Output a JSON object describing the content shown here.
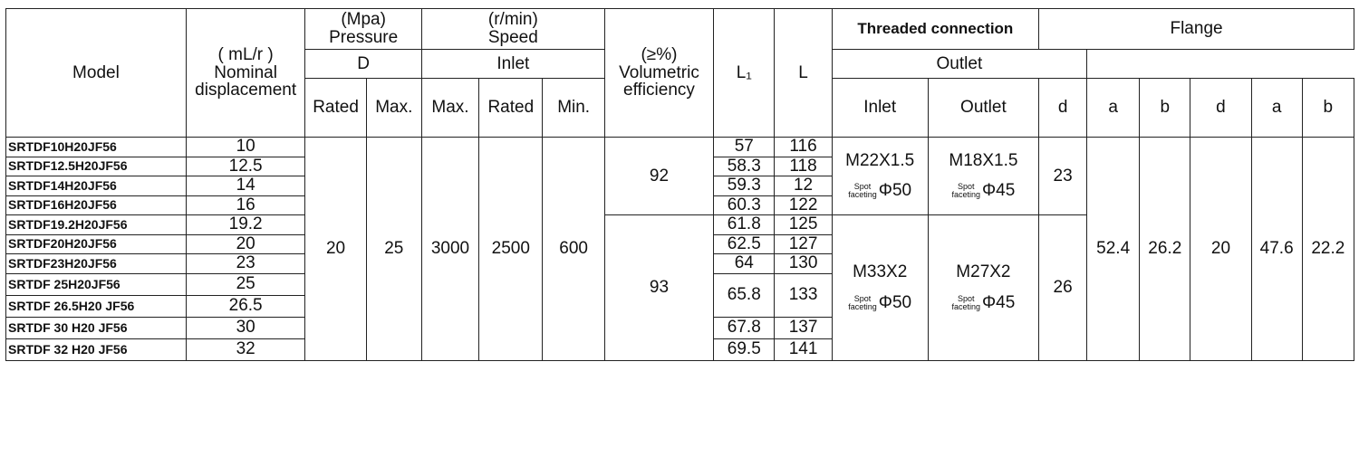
{
  "headers": {
    "model": "Model",
    "displacement_unit": "( mL/r )",
    "displacement_label": "Nominal displacement",
    "pressure_unit": "(Mpa)",
    "pressure_label": "Pressure",
    "speed_unit": "(r/min)",
    "speed_label": "Speed",
    "efficiency_unit": "(≥%)",
    "efficiency_label": "Volumetric efficiency",
    "l1": "L₁",
    "l": "L",
    "threaded": "Threaded connection",
    "d_upper": "D",
    "flange": "Flange",
    "inlet": "Inlet",
    "outlet": "Outlet",
    "rated": "Rated",
    "max": "Max.",
    "min": "Min.",
    "th_inlet": "Inlet",
    "th_outlet": "Outlet",
    "d": "d",
    "a": "a",
    "b": "b"
  },
  "rows": [
    {
      "model": "SRTDF10H20JF56",
      "disp": "10",
      "l1": "57",
      "l": "116"
    },
    {
      "model": "SRTDF12.5H20JF56",
      "disp": "12.5",
      "l1": "58.3",
      "l": "118"
    },
    {
      "model": "SRTDF14H20JF56",
      "disp": "14",
      "l1": "59.3",
      "l": "12"
    },
    {
      "model": "SRTDF16H20JF56",
      "disp": "16",
      "l1": "60.3",
      "l": "122"
    },
    {
      "model": "SRTDF19.2H20JF56",
      "disp": "19.2",
      "l1": "61.8",
      "l": "125"
    },
    {
      "model": "SRTDF20H20JF56",
      "disp": "20",
      "l1": "62.5",
      "l": "127"
    },
    {
      "model": "SRTDF23H20JF56",
      "disp": "23",
      "l1": "64",
      "l": "130"
    },
    {
      "model": "SRTDF 25H20JF56",
      "disp": "25"
    },
    {
      "model": "SRTDF 26.5H20 JF56",
      "disp": "26.5"
    },
    {
      "model": "SRTDF 30 H20 JF56",
      "disp": "30",
      "l1": "67.8",
      "l": "137"
    },
    {
      "model": "SRTDF 32 H20 JF56",
      "disp": "32",
      "l1": "69.5",
      "l": "141"
    }
  ],
  "merged_l1_l_25_26": {
    "l1": "65.8",
    "l": "133"
  },
  "shared": {
    "pressure_rated": "20",
    "pressure_max": "25",
    "speed_max": "3000",
    "speed_rated": "2500",
    "speed_min": "600",
    "flange_inlet_a": "52.4",
    "flange_inlet_b": "26.2",
    "flange_outlet_d": "20",
    "flange_outlet_a": "47.6",
    "flange_outlet_b": "22.2"
  },
  "group1": {
    "efficiency": "92",
    "thread_inlet": "M22X1.5",
    "thread_outlet": "M18X1.5",
    "inlet_phi": "Φ50",
    "outlet_phi": "Φ45",
    "flange_inlet_d": "23"
  },
  "group2": {
    "efficiency": "93",
    "thread_inlet": "M33X2",
    "thread_outlet": "M27X2",
    "inlet_phi": "Φ50",
    "outlet_phi": "Φ45",
    "flange_inlet_d": "26"
  },
  "spot_label_top": "Spot",
  "spot_label_bottom": "faceting"
}
